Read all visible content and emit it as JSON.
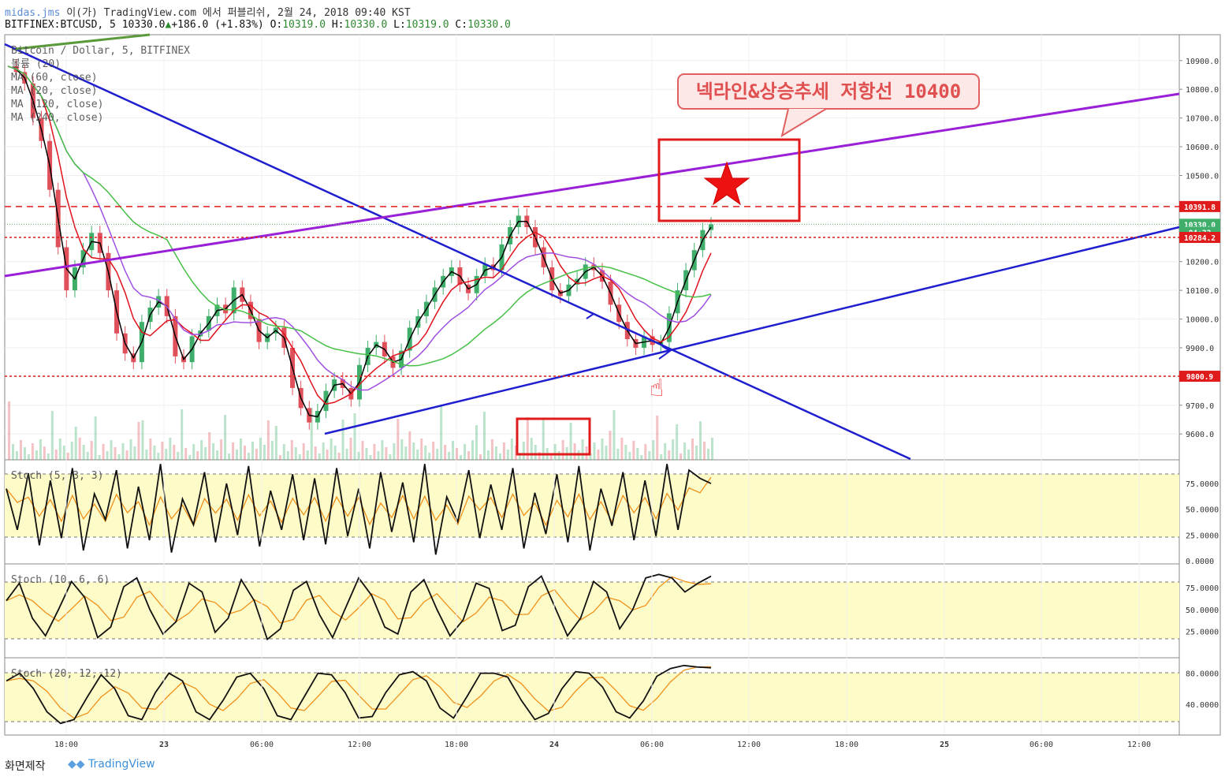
{
  "header": {
    "author": "midas.jms",
    "publish_line": " 이(가) TradingView.com 에서 퍼블리쉬, 2월 24, 2018 09:40 KST",
    "symbol": "BITFINEX:BTCUSD, 5",
    "last": "10330.0",
    "change": "+186.0 (+1.83%)",
    "o_label": "O:",
    "o": "10319.0",
    "h_label": "H:",
    "h": "10330.0",
    "l_label": "L:",
    "l": "10319.0",
    "c_label": "C:",
    "c": "10330.0"
  },
  "legend": [
    "Bitcoin / Dollar, 5, BITFINEX",
    "볼륨 (20)",
    "MA (60, close)",
    "MA (20, close)",
    "MA (120, close)",
    "MA (240, close)"
  ],
  "annotation": {
    "callout": "넥라인&상승추세 저항선 10400"
  },
  "panes": {
    "stoch1": "Stoch (5, 3, 3)",
    "stoch2": "Stoch (10, 6, 6)",
    "stoch3": "Stoch (20, 12, 12)"
  },
  "footer": {
    "made_by": "화면제작",
    "brand": "TradingView"
  },
  "colors": {
    "candle_up": "#3fae6a",
    "candle_down": "#e0505a",
    "ma_black": "#000000",
    "ma_red": "#e0121b",
    "ma_purple": "#a050e0",
    "ma_green": "#46c046",
    "trend_blue": "#1f1fd0",
    "trend_purple": "#9a20d8",
    "level_red": "#e01b1b",
    "stoch_fill": "#fdfcc8"
  },
  "chart_data": [
    {
      "type": "line",
      "title": "Bitcoin / Dollar, 5, BITFINEX",
      "x_ticks": [
        "18:00",
        "23",
        "06:00",
        "12:00",
        "18:00",
        "24",
        "06:00",
        "12:00",
        "18:00",
        "25",
        "06:00",
        "12:00"
      ],
      "y_ticks": [
        9600.0,
        9700.0,
        9800.0,
        9900.0,
        10000.0,
        10100.0,
        10200.0,
        10300.0,
        10400.0,
        10500.0,
        10600.0,
        10700.0,
        10800.0,
        10900.0
      ],
      "ylim": [
        9510,
        10990
      ],
      "price_labels": [
        {
          "value": "10391.8",
          "price": 10391.8,
          "color": "#e01b1b"
        },
        {
          "value": "10330.0",
          "price": 10330.0,
          "color": "#3fae6a"
        },
        {
          "value": "04:33",
          "price": 10302,
          "color": "#3fae6a"
        },
        {
          "value": "10284.2",
          "price": 10284.2,
          "color": "#e01b1b"
        },
        {
          "value": "9800.9",
          "price": 9800.9,
          "color": "#e01b1b"
        }
      ],
      "close_series": [
        10880,
        10860,
        10820,
        10700,
        10620,
        10450,
        10250,
        10100,
        10180,
        10240,
        10300,
        10230,
        10100,
        9950,
        9880,
        9850,
        9990,
        10040,
        10080,
        10010,
        9870,
        9850,
        9940,
        9960,
        10010,
        10050,
        10020,
        10110,
        10060,
        10000,
        9920,
        9950,
        9970,
        9900,
        9760,
        9690,
        9640,
        9680,
        9750,
        9790,
        9760,
        9720,
        9840,
        9900,
        9920,
        9870,
        9830,
        9890,
        9970,
        10010,
        10060,
        10110,
        10150,
        10180,
        10120,
        10090,
        10150,
        10190,
        10170,
        10260,
        10320,
        10360,
        10320,
        10250,
        10180,
        10100,
        10080,
        10120,
        10140,
        10190,
        10170,
        10130,
        10050,
        9990,
        9930,
        9900,
        9940,
        9910,
        9920,
        10020,
        10100,
        10170,
        10240,
        10310,
        10330
      ]
    },
    {
      "type": "line",
      "title": "Stoch (5, 3, 3)",
      "y_ticks": [
        0.0,
        25.0,
        50.0,
        75.0
      ],
      "ylim": [
        -3,
        98
      ],
      "bands": [
        80,
        20
      ],
      "series": [
        {
          "values": [
            70,
            30,
            85,
            15,
            78,
            22,
            90,
            10,
            65,
            40,
            88,
            12,
            72,
            20,
            94,
            8,
            60,
            35,
            86,
            18,
            75,
            25,
            92,
            14,
            68,
            30,
            84,
            20,
            80,
            16,
            90,
            24,
            70,
            12,
            86,
            28,
            76,
            18,
            94,
            6,
            62,
            38,
            88,
            22,
            74,
            30,
            90,
            12,
            66,
            26,
            84,
            18,
            92,
            10,
            70,
            34,
            86,
            20,
            78,
            24,
            94,
            30,
            88,
            80,
            75
          ]
        }
      ]
    },
    {
      "type": "line",
      "title": "Stoch (10, 6, 6)",
      "y_ticks": [
        25.0,
        50.0,
        75.0
      ],
      "ylim": [
        -5,
        102
      ],
      "bands": [
        80,
        20
      ],
      "series": [
        {
          "values": [
            60,
            80,
            40,
            20,
            50,
            82,
            64,
            18,
            30,
            76,
            86,
            50,
            22,
            36,
            80,
            70,
            24,
            40,
            84,
            60,
            16,
            28,
            72,
            82,
            44,
            18,
            52,
            86,
            66,
            30,
            22,
            70,
            84,
            50,
            20,
            38,
            80,
            74,
            26,
            32,
            76,
            88,
            54,
            20,
            40,
            82,
            70,
            28,
            50,
            86,
            90,
            86,
            70,
            80,
            88
          ]
        }
      ]
    },
    {
      "type": "line",
      "title": "Stoch (20, 12, 12)",
      "y_ticks": [
        40.0,
        80.0
      ],
      "ylim": [
        0,
        100
      ],
      "bands": [
        80,
        20
      ],
      "series": [
        {
          "values": [
            70,
            80,
            60,
            30,
            15,
            20,
            50,
            78,
            60,
            25,
            20,
            55,
            80,
            70,
            30,
            20,
            45,
            75,
            80,
            60,
            25,
            20,
            50,
            80,
            78,
            55,
            22,
            24,
            55,
            78,
            82,
            70,
            35,
            22,
            50,
            80,
            80,
            75,
            45,
            20,
            28,
            60,
            82,
            80,
            62,
            30,
            22,
            44,
            76,
            86,
            90,
            88,
            87
          ]
        }
      ]
    }
  ]
}
